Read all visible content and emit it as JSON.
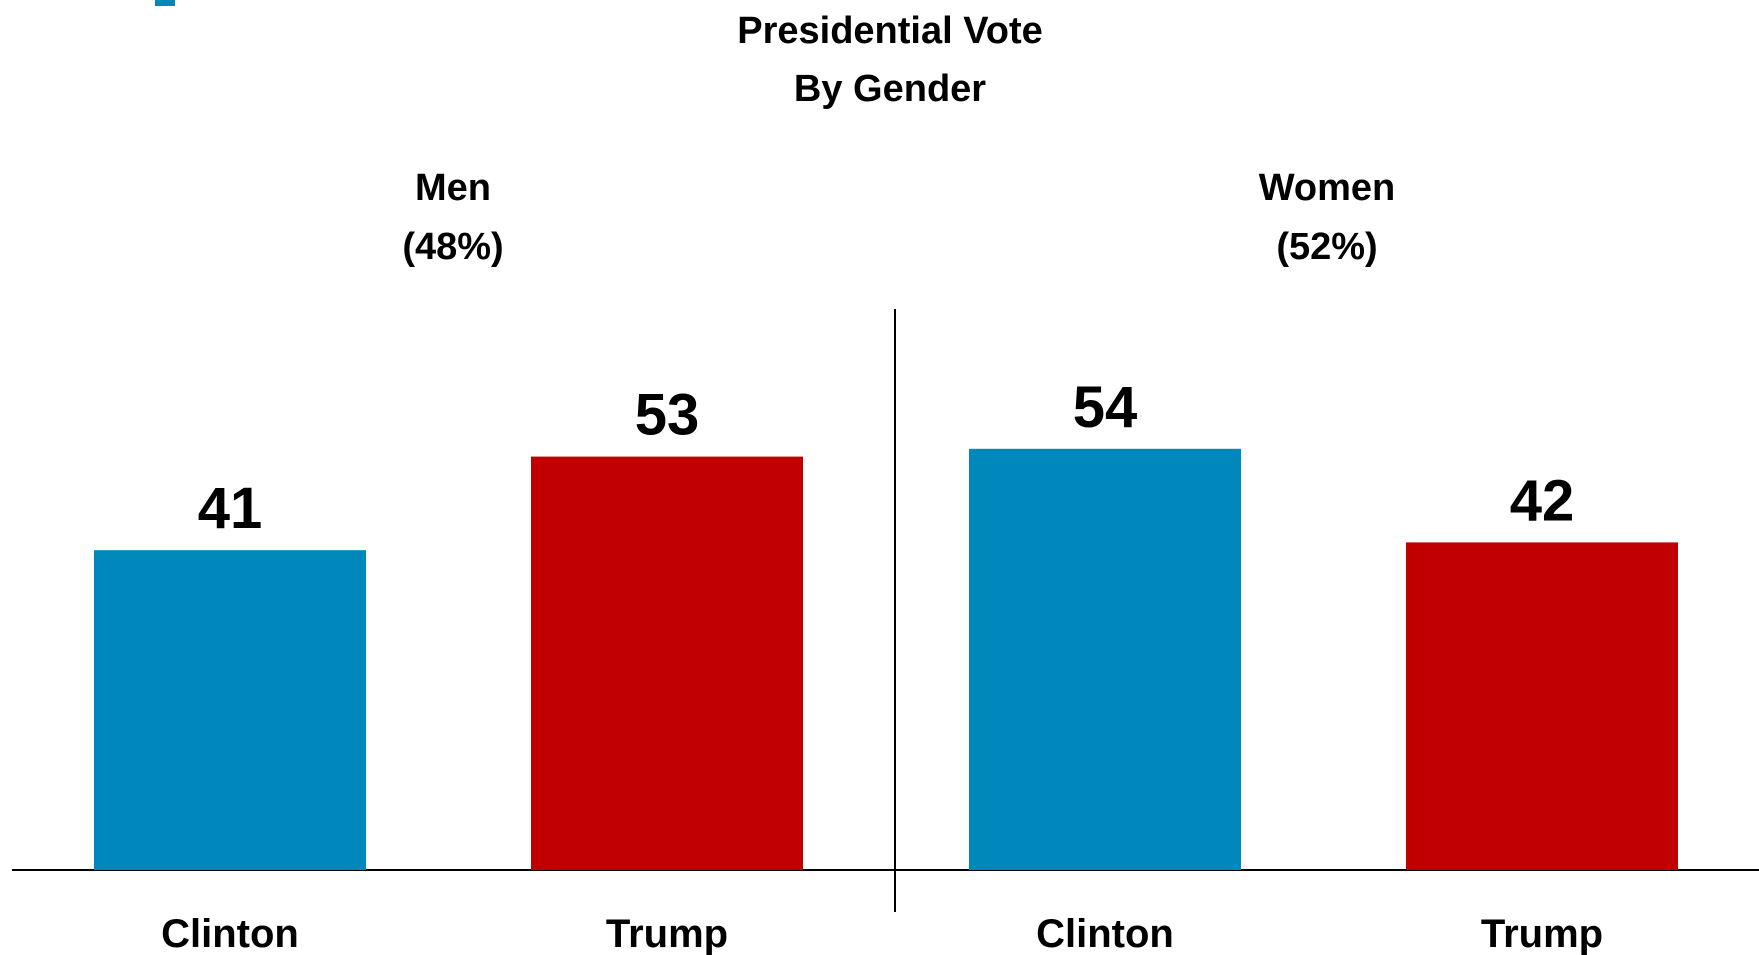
{
  "chart_data": {
    "type": "bar",
    "title": [
      "Presidential Vote",
      "By Gender"
    ],
    "groups": [
      {
        "label": [
          "Men",
          "(48%)"
        ],
        "categories": [
          "Clinton",
          "Trump"
        ],
        "values": [
          41,
          53
        ]
      },
      {
        "label": [
          "Women",
          "(52%)"
        ],
        "categories": [
          "Clinton",
          "Trump"
        ],
        "values": [
          54,
          42
        ]
      }
    ],
    "ylim": [
      0,
      100
    ],
    "grid": false,
    "legend": "none",
    "colors": {
      "Clinton": "#0088BC",
      "Trump": "#C00000",
      "axis": "#000000",
      "accent": "#0088BC"
    }
  }
}
